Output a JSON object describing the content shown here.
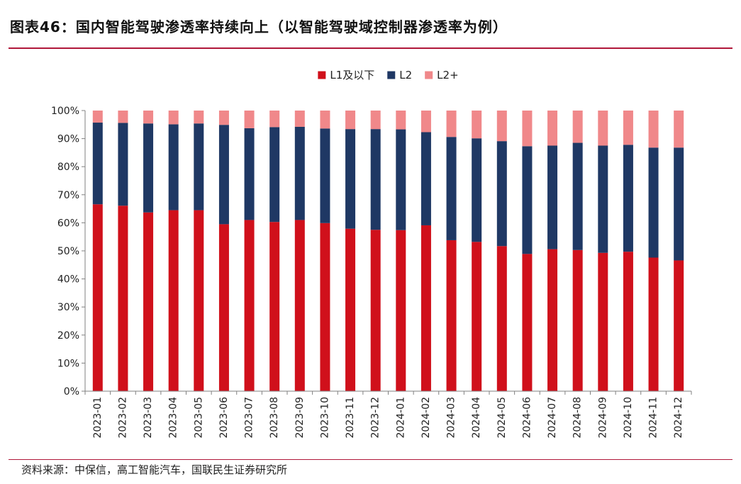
{
  "figure": {
    "title": "图表46：国内智能驾驶渗透率持续向上（以智能驾驶域控制器渗透率为例）",
    "source": "资料来源：中保信，高工智能汽车，国联民生证券研究所"
  },
  "chart_data": {
    "type": "bar",
    "stacked": true,
    "title": "",
    "xlabel": "",
    "ylabel": "",
    "ylim": [
      0,
      100
    ],
    "yticks": [
      "0%",
      "10%",
      "20%",
      "30%",
      "40%",
      "50%",
      "60%",
      "70%",
      "80%",
      "90%",
      "100%"
    ],
    "legend_position": "top-center",
    "grid": false,
    "categories": [
      "2023-01",
      "2023-02",
      "2023-03",
      "2023-04",
      "2023-05",
      "2023-06",
      "2023-07",
      "2023-08",
      "2023-09",
      "2023-10",
      "2023-11",
      "2023-12",
      "2024-01",
      "2024-02",
      "2024-03",
      "2024-04",
      "2024-05",
      "2024-06",
      "2024-07",
      "2024-08",
      "2024-09",
      "2024-10",
      "2024-11",
      "2024-12"
    ],
    "series": [
      {
        "name": "L1及以下",
        "color": "#d0101b",
        "values": [
          66.6,
          66.1,
          63.7,
          64.5,
          64.5,
          59.5,
          61.0,
          60.3,
          61.0,
          59.9,
          57.9,
          57.5,
          57.4,
          59.1,
          53.8,
          53.2,
          51.7,
          48.9,
          50.6,
          50.3,
          49.3,
          49.7,
          47.6,
          46.6
        ]
      },
      {
        "name": "L2",
        "color": "#1f3864",
        "values": [
          29.1,
          29.5,
          31.7,
          30.6,
          30.9,
          35.4,
          32.7,
          33.8,
          33.2,
          33.7,
          35.5,
          35.9,
          35.9,
          33.2,
          36.8,
          36.9,
          37.4,
          38.4,
          36.9,
          38.2,
          38.2,
          38.1,
          39.2,
          40.2
        ]
      },
      {
        "name": "L2+",
        "color": "#f0888a",
        "values": [
          4.3,
          4.4,
          4.6,
          4.9,
          4.6,
          5.1,
          6.3,
          5.9,
          5.8,
          6.4,
          6.6,
          6.6,
          6.7,
          7.7,
          9.4,
          9.9,
          10.9,
          12.7,
          12.5,
          11.5,
          12.5,
          12.2,
          13.2,
          13.2
        ]
      }
    ]
  }
}
